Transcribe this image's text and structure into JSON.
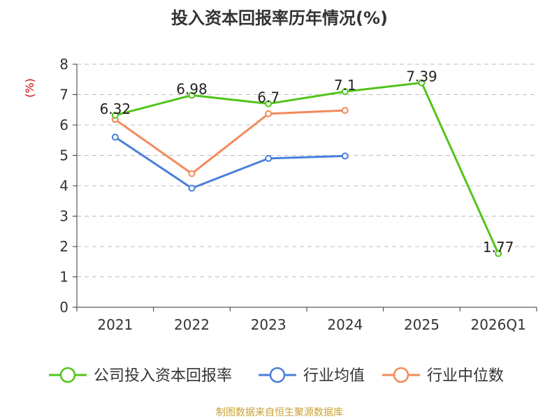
{
  "chart_data": {
    "type": "line",
    "title": "投入资本回报率历年情况(%)",
    "ylabel": "(%)",
    "xlabel": "",
    "categories": [
      "2021",
      "2022",
      "2023",
      "2024",
      "2025",
      "2026Q1"
    ],
    "ylim": [
      0,
      8
    ],
    "yticks": [
      0,
      1,
      2,
      3,
      4,
      5,
      6,
      7,
      8
    ],
    "grid": true,
    "legend_position": "bottom",
    "series": [
      {
        "name": "公司投入资本回报率",
        "color": "#52c41a",
        "values": [
          6.32,
          6.98,
          6.7,
          7.1,
          7.39,
          1.77
        ],
        "labels": [
          "6.32",
          "6.98",
          "6.7",
          "7.1",
          "7.39",
          "1.77"
        ]
      },
      {
        "name": "行业均值",
        "color": "#4a7fdb",
        "values": [
          5.6,
          3.92,
          4.9,
          4.98,
          null,
          null
        ]
      },
      {
        "name": "行业中位数",
        "color": "#f4895a",
        "values": [
          6.18,
          4.4,
          6.37,
          6.48,
          null,
          null
        ]
      }
    ],
    "source": "制图数据来自恒生聚源数据库"
  }
}
